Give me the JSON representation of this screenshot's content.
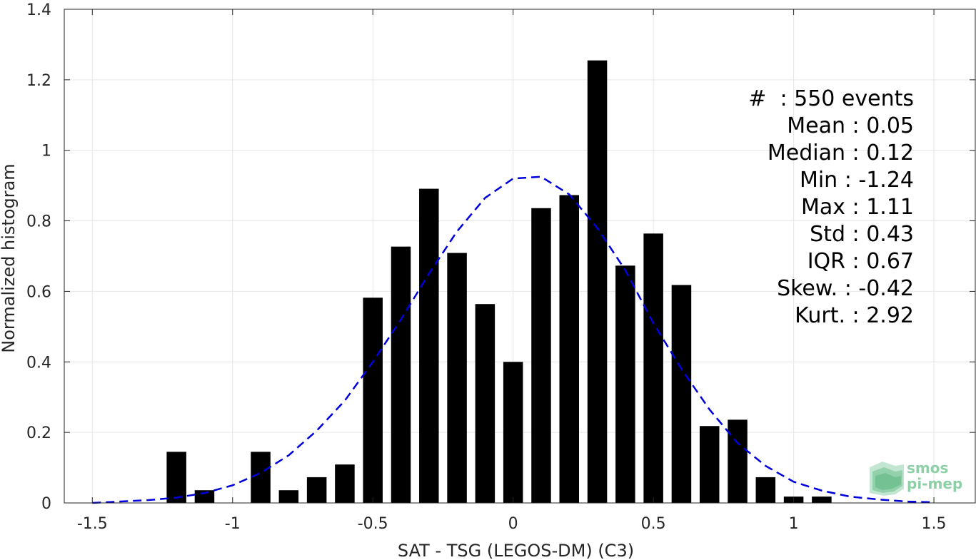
{
  "chart_data": {
    "type": "bar",
    "xlabel": "SAT - TSG (LEGOS-DM) (C3)",
    "ylabel": "Normalized histogram",
    "xlim": [
      -1.6,
      1.65
    ],
    "ylim": [
      0,
      1.4
    ],
    "x_ticks": [
      -1.5,
      -1,
      -0.5,
      0,
      0.5,
      1,
      1.5
    ],
    "x_tick_labels": [
      "-1.5",
      "-1",
      "-0.5",
      "0",
      "0.5",
      "1",
      "1.5"
    ],
    "y_ticks": [
      0,
      0.2,
      0.4,
      0.6,
      0.8,
      1,
      1.2,
      1.4
    ],
    "y_tick_labels": [
      "0",
      "0.2",
      "0.4",
      "0.6",
      "0.8",
      "1",
      "1.2",
      "1.4"
    ],
    "grid": true,
    "bar_color": "#000000",
    "bar_width": 0.07,
    "series": [
      {
        "kind": "bar",
        "x": [
          -1.2,
          -1.1,
          -0.9,
          -0.8,
          -0.7,
          -0.6,
          -0.5,
          -0.4,
          -0.3,
          -0.2,
          -0.1,
          0.0,
          0.1,
          0.2,
          0.3,
          0.4,
          0.5,
          0.6,
          0.7,
          0.8,
          0.9,
          1.0,
          1.1
        ],
        "values": [
          0.145,
          0.036,
          0.145,
          0.036,
          0.073,
          0.109,
          0.582,
          0.727,
          0.891,
          0.709,
          0.564,
          0.4,
          0.836,
          0.873,
          1.255,
          0.673,
          0.764,
          0.618,
          0.218,
          0.236,
          0.073,
          0.018,
          0.018
        ]
      },
      {
        "kind": "line",
        "style": "dashed",
        "color": "#0000dd",
        "x": [
          -1.5,
          -1.4,
          -1.3,
          -1.2,
          -1.1,
          -1.0,
          -0.9,
          -0.8,
          -0.7,
          -0.6,
          -0.5,
          -0.4,
          -0.3,
          -0.2,
          -0.1,
          0.0,
          0.1,
          0.2,
          0.3,
          0.4,
          0.5,
          0.6,
          0.7,
          0.8,
          0.9,
          1.0,
          1.1,
          1.2,
          1.3,
          1.4,
          1.5
        ],
        "values": [
          0.0,
          0.004,
          0.008,
          0.015,
          0.028,
          0.05,
          0.085,
          0.135,
          0.205,
          0.29,
          0.4,
          0.52,
          0.65,
          0.77,
          0.865,
          0.92,
          0.925,
          0.875,
          0.78,
          0.66,
          0.51,
          0.38,
          0.265,
          0.17,
          0.105,
          0.06,
          0.035,
          0.018,
          0.01,
          0.004,
          0.002
        ]
      }
    ],
    "stats": [
      {
        "label": "#  ",
        "value": ": 550 events"
      },
      {
        "label": "Mean ",
        "value": ": 0.05"
      },
      {
        "label": "Median ",
        "value": ": 0.12"
      },
      {
        "label": "Min ",
        "value": ": -1.24"
      },
      {
        "label": "Max ",
        "value": ": 1.11"
      },
      {
        "label": "Std ",
        "value": ": 0.43"
      },
      {
        "label": "IQR ",
        "value": ": 0.67"
      },
      {
        "label": "Skew. ",
        "value": ": -0.42"
      },
      {
        "label": "Kurt. ",
        "value": ": 2.92"
      }
    ]
  },
  "logo": {
    "line1": "smos",
    "line2": "pi-mep"
  }
}
